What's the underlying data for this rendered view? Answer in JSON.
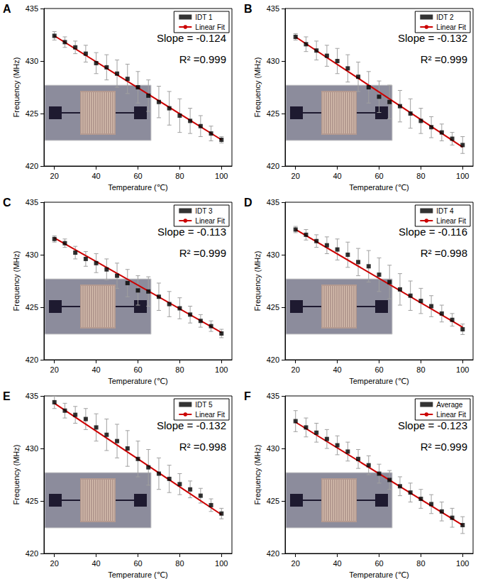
{
  "chart_data": [
    {
      "type": "scatter",
      "title": "A",
      "annotations": [
        "Slope = -0.124",
        "R² =0.999"
      ],
      "xlabel": "Temperature (℃)",
      "ylabel": "Frequency (MHz)",
      "xlim": [
        15,
        105
      ],
      "xticks": [
        20,
        40,
        60,
        80,
        100
      ],
      "ylim": [
        420,
        435
      ],
      "yticks": [
        420,
        425,
        430,
        435
      ],
      "grid": false,
      "legend": "upper right",
      "x": [
        20,
        25,
        30,
        35,
        40,
        45,
        50,
        55,
        60,
        65,
        70,
        75,
        80,
        85,
        90,
        95,
        100
      ],
      "series": [
        {
          "name": "IDT 1",
          "type": "scatter",
          "color": "#000000",
          "marker": "square",
          "values": [
            432.4,
            431.8,
            431.3,
            430.7,
            429.8,
            429.4,
            428.8,
            428.3,
            427.5,
            426.7,
            426.1,
            425.5,
            424.8,
            424.3,
            423.8,
            423.1,
            422.5
          ],
          "errors": [
            0.4,
            0.5,
            0.6,
            0.8,
            1.0,
            1.2,
            1.3,
            1.4,
            1.5,
            1.5,
            1.5,
            1.6,
            1.6,
            1.2,
            1.0,
            0.7,
            0.3
          ]
        },
        {
          "name": "Linear Fit",
          "type": "line",
          "color": "#cc0000",
          "line_style": "solid",
          "x": [
            20,
            100
          ],
          "values": [
            432.4,
            422.5
          ]
        }
      ]
    },
    {
      "type": "scatter",
      "title": "B",
      "annotations": [
        "Slope = -0.132",
        "R² =0.999"
      ],
      "xlabel": "Temperature (℃)",
      "ylabel": "Frequency (MHz)",
      "xlim": [
        15,
        105
      ],
      "xticks": [
        20,
        40,
        60,
        80,
        100
      ],
      "ylim": [
        420,
        435
      ],
      "yticks": [
        420,
        425,
        430,
        435
      ],
      "grid": false,
      "legend": "upper right",
      "x": [
        20,
        25,
        30,
        35,
        40,
        45,
        50,
        55,
        60,
        65,
        70,
        75,
        80,
        85,
        90,
        95,
        100
      ],
      "series": [
        {
          "name": "IDT 2",
          "type": "scatter",
          "color": "#000000",
          "marker": "square",
          "values": [
            432.3,
            431.6,
            431.0,
            430.5,
            430.0,
            429.3,
            428.5,
            427.5,
            426.6,
            426.1,
            425.7,
            425.0,
            424.3,
            423.7,
            423.2,
            422.6,
            422.0
          ],
          "errors": [
            0.3,
            0.7,
            0.9,
            1.0,
            1.2,
            1.3,
            1.4,
            1.5,
            1.5,
            1.6,
            1.5,
            1.4,
            1.2,
            1.0,
            0.8,
            0.6,
            0.8
          ]
        },
        {
          "name": "Linear Fit",
          "type": "line",
          "color": "#cc0000",
          "line_style": "solid",
          "x": [
            20,
            100
          ],
          "values": [
            432.3,
            421.8
          ]
        }
      ]
    },
    {
      "type": "scatter",
      "title": "C",
      "annotations": [
        "Slope = -0.113",
        "R² =0.999"
      ],
      "xlabel": "Temperature (℃)",
      "ylabel": "Frequency (MHz)",
      "xlim": [
        15,
        105
      ],
      "xticks": [
        20,
        40,
        60,
        80,
        100
      ],
      "ylim": [
        420,
        435
      ],
      "yticks": [
        420,
        425,
        430,
        435
      ],
      "grid": false,
      "legend": "upper right",
      "x": [
        20,
        25,
        30,
        35,
        40,
        45,
        50,
        55,
        60,
        65,
        70,
        75,
        80,
        85,
        90,
        95,
        100
      ],
      "series": [
        {
          "name": "IDT 3",
          "type": "scatter",
          "color": "#000000",
          "marker": "square",
          "values": [
            431.5,
            431.1,
            430.2,
            429.6,
            429.2,
            428.6,
            428.0,
            427.3,
            426.6,
            426.5,
            426.0,
            425.3,
            424.9,
            424.3,
            423.7,
            423.2,
            422.5
          ],
          "errors": [
            0.3,
            0.4,
            0.6,
            0.7,
            0.9,
            1.0,
            1.2,
            1.3,
            1.4,
            1.4,
            1.3,
            1.2,
            1.0,
            0.8,
            0.6,
            0.5,
            0.4
          ]
        },
        {
          "name": "Linear Fit",
          "type": "line",
          "color": "#cc0000",
          "line_style": "solid",
          "x": [
            20,
            100
          ],
          "values": [
            431.6,
            422.6
          ]
        }
      ]
    },
    {
      "type": "scatter",
      "title": "D",
      "annotations": [
        "Slope = -0.116",
        "R² =0.998"
      ],
      "xlabel": "Temperature (℃)",
      "ylabel": "Frequency (MHz)",
      "xlim": [
        15,
        105
      ],
      "xticks": [
        20,
        40,
        60,
        80,
        100
      ],
      "ylim": [
        420,
        435
      ],
      "yticks": [
        420,
        425,
        430,
        435
      ],
      "grid": false,
      "legend": "upper right",
      "x": [
        20,
        25,
        30,
        35,
        40,
        45,
        50,
        55,
        60,
        65,
        70,
        75,
        80,
        85,
        90,
        95,
        100
      ],
      "series": [
        {
          "name": "IDT 4",
          "type": "scatter",
          "color": "#000000",
          "marker": "square",
          "values": [
            432.4,
            431.9,
            431.3,
            430.9,
            430.5,
            430.0,
            429.3,
            428.9,
            428.1,
            427.4,
            426.7,
            426.1,
            425.6,
            425.1,
            424.4,
            423.8,
            422.9
          ],
          "errors": [
            0.3,
            0.5,
            0.6,
            0.8,
            1.0,
            1.2,
            1.3,
            1.5,
            1.6,
            1.6,
            1.5,
            1.4,
            1.2,
            1.0,
            0.8,
            0.6,
            0.5
          ]
        },
        {
          "name": "Linear Fit",
          "type": "line",
          "color": "#cc0000",
          "line_style": "solid",
          "x": [
            20,
            100
          ],
          "values": [
            432.4,
            423.1
          ]
        }
      ]
    },
    {
      "type": "scatter",
      "title": "E",
      "annotations": [
        "Slope = -0.132",
        "R² =0.998"
      ],
      "xlabel": "Temperature (℃)",
      "ylabel": "Frequency (MHz)",
      "xlim": [
        15,
        105
      ],
      "xticks": [
        20,
        40,
        60,
        80,
        100
      ],
      "ylim": [
        420,
        435
      ],
      "yticks": [
        420,
        425,
        430,
        435
      ],
      "grid": false,
      "legend": "upper right",
      "x": [
        20,
        25,
        30,
        35,
        40,
        45,
        50,
        55,
        60,
        65,
        70,
        75,
        80,
        85,
        90,
        95,
        100
      ],
      "series": [
        {
          "name": "IDT 5",
          "type": "scatter",
          "color": "#000000",
          "marker": "square",
          "values": [
            434.4,
            433.6,
            433.2,
            432.8,
            432.0,
            431.3,
            430.7,
            430.0,
            429.0,
            428.2,
            427.6,
            427.1,
            426.6,
            426.1,
            425.5,
            424.6,
            423.8
          ],
          "errors": [
            0.6,
            0.7,
            0.8,
            1.0,
            1.3,
            1.5,
            1.6,
            1.7,
            1.7,
            1.7,
            1.5,
            1.3,
            1.0,
            0.8,
            0.7,
            0.6,
            0.5
          ]
        },
        {
          "name": "Linear Fit",
          "type": "line",
          "color": "#cc0000",
          "line_style": "solid",
          "x": [
            20,
            100
          ],
          "values": [
            434.3,
            423.7
          ]
        }
      ]
    },
    {
      "type": "scatter",
      "title": "F",
      "annotations": [
        "Slope = -0.123",
        "R² =0.999"
      ],
      "xlabel": "Temperature (℃)",
      "ylabel": "Frequency (MHz)",
      "xlim": [
        15,
        105
      ],
      "xticks": [
        20,
        40,
        60,
        80,
        100
      ],
      "ylim": [
        420,
        435
      ],
      "yticks": [
        420,
        425,
        430,
        435
      ],
      "grid": false,
      "legend": "upper right",
      "x": [
        20,
        25,
        30,
        35,
        40,
        45,
        50,
        55,
        60,
        65,
        70,
        75,
        80,
        85,
        90,
        95,
        100
      ],
      "series": [
        {
          "name": "Average",
          "type": "scatter",
          "color": "#000000",
          "marker": "square",
          "values": [
            432.6,
            432.0,
            431.5,
            430.9,
            430.3,
            429.7,
            429.0,
            428.4,
            427.6,
            427.0,
            426.4,
            425.8,
            425.2,
            424.7,
            424.0,
            423.4,
            422.7
          ],
          "errors": [
            1.0,
            0.9,
            0.9,
            0.9,
            0.9,
            0.9,
            0.9,
            0.9,
            0.9,
            0.9,
            0.9,
            0.9,
            0.9,
            0.9,
            0.9,
            0.9,
            0.8
          ]
        },
        {
          "name": "Linear Fit",
          "type": "line",
          "color": "#cc0000",
          "line_style": "solid",
          "x": [
            20,
            100
          ],
          "values": [
            432.5,
            422.7
          ]
        }
      ]
    }
  ]
}
